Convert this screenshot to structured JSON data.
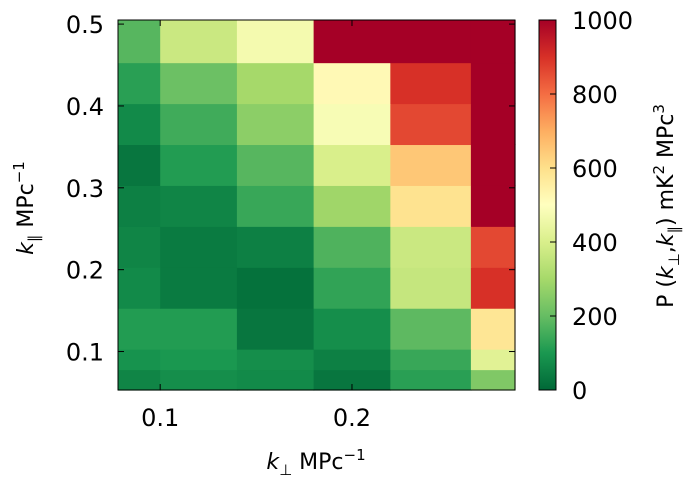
{
  "chart_data": {
    "type": "heatmap",
    "x_ticks": [
      0.1,
      0.2
    ],
    "y_ticks": [
      0.1,
      0.2,
      0.3,
      0.4,
      0.5
    ],
    "xlim": [
      0.078,
      0.285
    ],
    "ylim": [
      0.053,
      0.505
    ],
    "x_edges": [
      0.078,
      0.1,
      0.14,
      0.18,
      0.22,
      0.262,
      0.285
    ],
    "y_edges": [
      0.053,
      0.078,
      0.103,
      0.153,
      0.203,
      0.253,
      0.303,
      0.353,
      0.403,
      0.453,
      0.505
    ],
    "values": [
      [
        60,
        80,
        70,
        30,
        120,
        240
      ],
      [
        90,
        100,
        80,
        50,
        140,
        420
      ],
      [
        110,
        110,
        30,
        80,
        190,
        580
      ],
      [
        70,
        40,
        20,
        130,
        360,
        900
      ],
      [
        60,
        40,
        50,
        170,
        370,
        860
      ],
      [
        50,
        60,
        140,
        290,
        590,
        1000
      ],
      [
        30,
        110,
        180,
        400,
        650,
        1000
      ],
      [
        70,
        150,
        260,
        480,
        860,
        1000
      ],
      [
        120,
        210,
        300,
        520,
        900,
        1000
      ],
      [
        180,
        370,
        470,
        1000,
        1000,
        1000
      ]
    ],
    "colorbar": {
      "range": [
        0,
        1000
      ],
      "ticks": [
        0,
        200,
        400,
        600,
        800,
        1000
      ],
      "colormap": "RdYlGn_r"
    },
    "xlabel": "k⊥  MPc⁻¹",
    "ylabel": "k∥  MPc⁻¹",
    "colorbar_label": "P (k⊥,k∥) mK² MPc³",
    "grid": false
  }
}
